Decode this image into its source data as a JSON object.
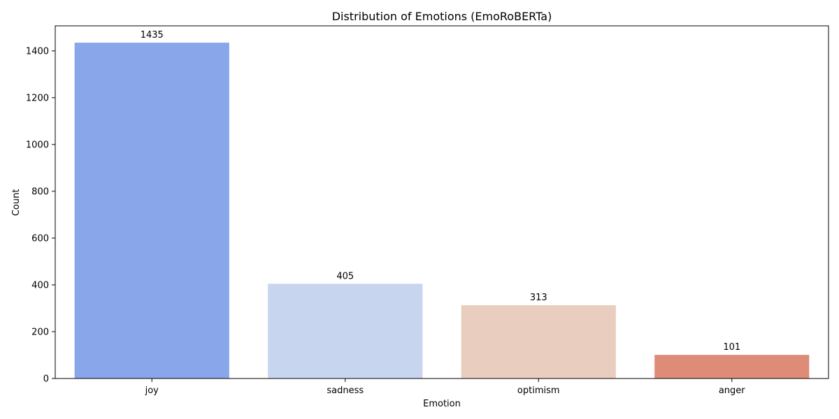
{
  "chart_data": {
    "type": "bar",
    "title": "Distribution of Emotions (EmoRoBERTa)",
    "xlabel": "Emotion",
    "ylabel": "Count",
    "categories": [
      "joy",
      "sadness",
      "optimism",
      "anger"
    ],
    "values": [
      1435,
      405,
      313,
      101
    ],
    "colors": [
      "#89a6eb",
      "#c8d5ef",
      "#e9cdbf",
      "#de8c78"
    ],
    "ylim": [
      0,
      1507
    ],
    "yticks": [
      0,
      200,
      400,
      600,
      800,
      1000,
      1200,
      1400
    ],
    "grid": false,
    "data_labels": [
      "1435",
      "405",
      "313",
      "101"
    ]
  }
}
